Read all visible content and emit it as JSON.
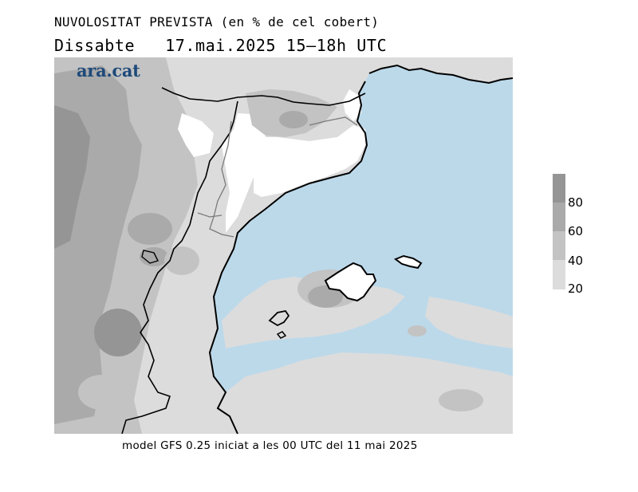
{
  "header": {
    "title": "NUVOLOSITAT PREVISTA (en % de cel cobert)",
    "day": "Dissabte",
    "date": "17.mai.2025",
    "time_range": "15–18h UTC"
  },
  "brand": {
    "name": "ara.cat",
    "color": "#1f4a7a"
  },
  "legend": {
    "levels": [
      "20",
      "40",
      "60",
      "80"
    ],
    "colors": {
      "sea": "#bcd9ea",
      "below_20": "#ffffff",
      "band_20_40": "#dcdcdc",
      "band_40_60": "#c3c3c3",
      "band_60_80": "#aaaaaa",
      "band_80_100": "#959595"
    }
  },
  "footer": {
    "text": "model GFS 0.25 iniciat a les 00 UTC del 11 mai 2025"
  }
}
